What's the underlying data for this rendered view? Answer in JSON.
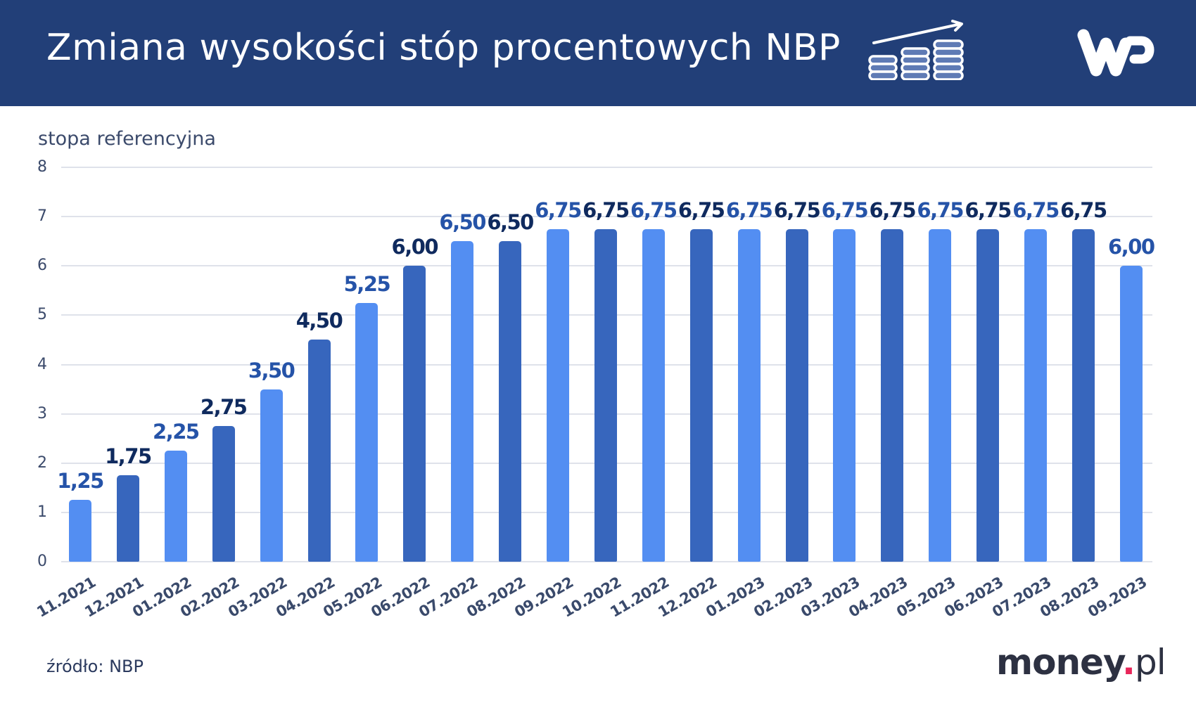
{
  "header": {
    "title": "Zmiana wysokości stóp procentowych NBP",
    "icon": "coins-growth-icon",
    "logo": "wp-logo",
    "background_color": "#223f78"
  },
  "chart_data": {
    "type": "bar",
    "title": "Zmiana wysokości stóp procentowych NBP",
    "xlabel": "",
    "ylabel": "stopa referencyjna",
    "ylim": [
      0,
      8
    ],
    "yticks": [
      "0",
      "1",
      "2",
      "3",
      "4",
      "5",
      "6",
      "7",
      "8"
    ],
    "grid": true,
    "legend": null,
    "categories": [
      "11.2021",
      "12.2021",
      "01.2022",
      "02.2022",
      "03.2022",
      "04.2022",
      "05.2022",
      "06.2022",
      "07.2022",
      "08.2022",
      "09.2022",
      "10.2022",
      "11.2022",
      "12.2022",
      "01.2023",
      "02.2023",
      "03.2023",
      "04.2023",
      "05.2023",
      "06.2023",
      "07.2023",
      "08.2023",
      "09.2023"
    ],
    "values": [
      1.25,
      1.75,
      2.25,
      2.75,
      3.5,
      4.5,
      5.25,
      6.0,
      6.5,
      6.5,
      6.75,
      6.75,
      6.75,
      6.75,
      6.75,
      6.75,
      6.75,
      6.75,
      6.75,
      6.75,
      6.75,
      6.75,
      6.0
    ],
    "value_labels": [
      "1,25",
      "1,75",
      "2,25",
      "2,75",
      "3,50",
      "4,50",
      "5,25",
      "6,00",
      "6,50",
      "6,50",
      "6,75",
      "6,75",
      "6,75",
      "6,75",
      "6,75",
      "6,75",
      "6,75",
      "6,75",
      "6,75",
      "6,75",
      "6,75",
      "6,75",
      "6,00"
    ],
    "colors": {
      "light_bar": "#538ef2",
      "dark_bar": "#3766bd",
      "light_label": "#2553a8",
      "dark_label": "#0f2a5e"
    }
  },
  "footer": {
    "source": "źródło: NBP",
    "brand_main": "money",
    "brand_dot": ".",
    "brand_tld": "pl",
    "brand_dot_color": "#e8265a"
  }
}
